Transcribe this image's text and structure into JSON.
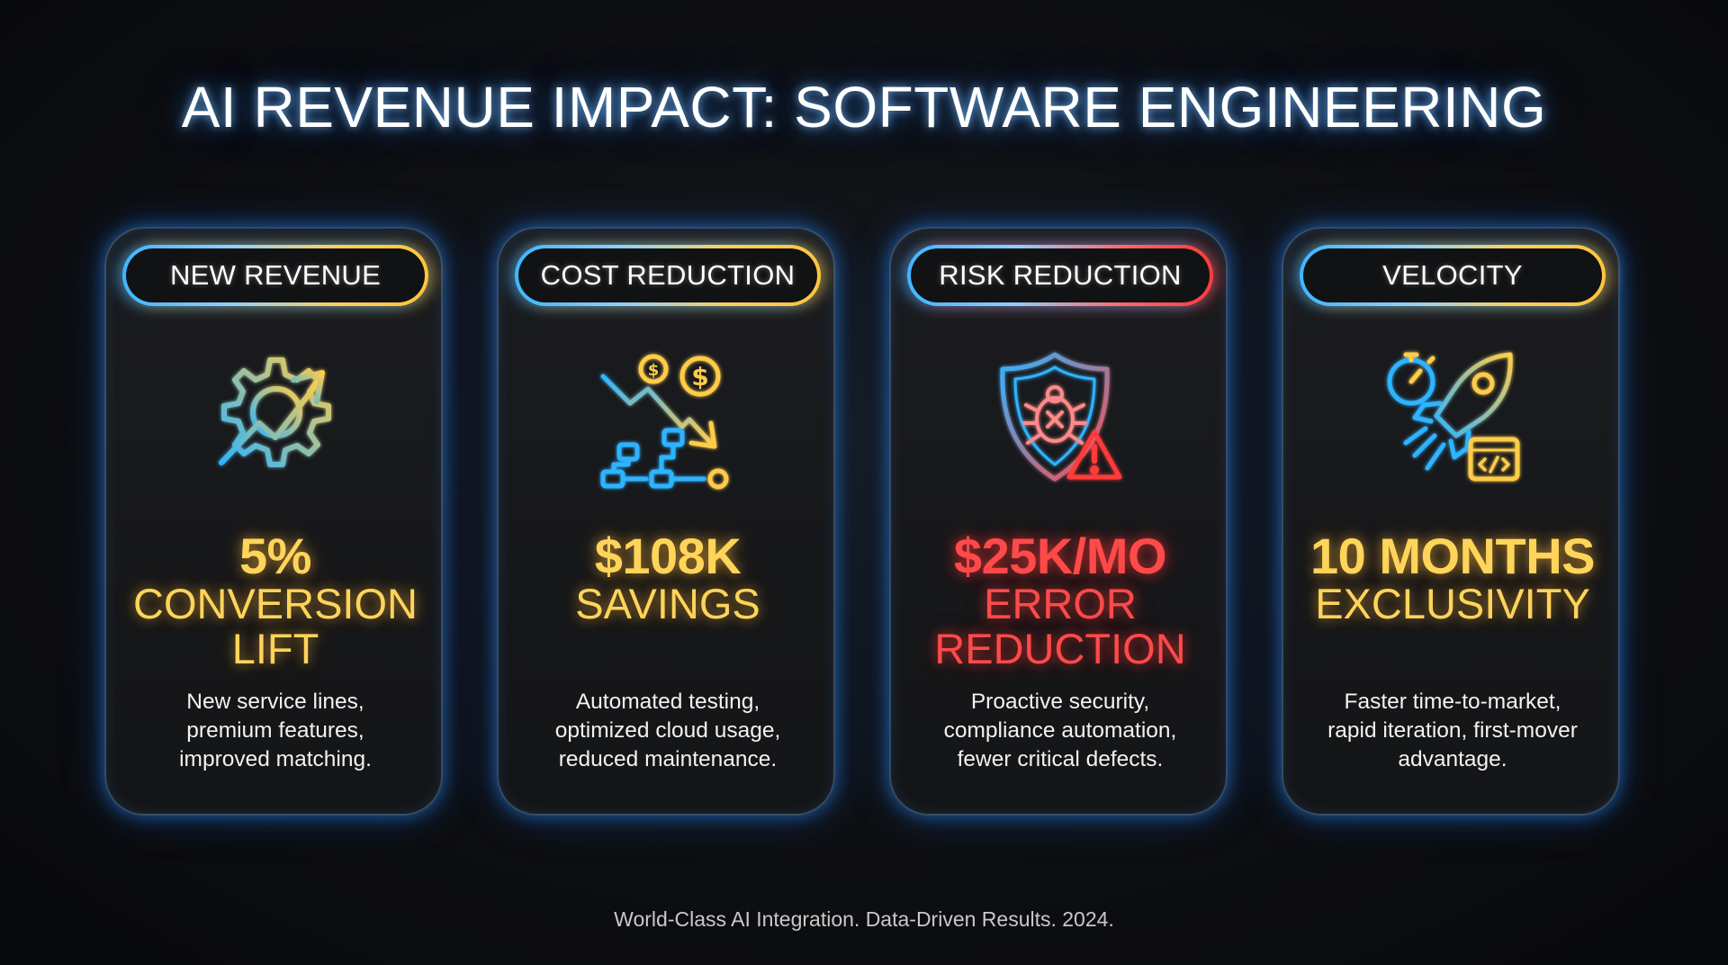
{
  "title": "AI REVENUE IMPACT: SOFTWARE ENGINEERING",
  "cards": [
    {
      "label": "NEW REVENUE",
      "icon": "gear-growth-arrow-icon",
      "metric_value": "5%",
      "metric_label_1": "CONVERSION",
      "metric_label_2": "LIFT",
      "desc_1": "New service lines,",
      "desc_2": "premium features,",
      "desc_3": "improved matching.",
      "accent": "#ffd45a"
    },
    {
      "label": "COST REDUCTION",
      "icon": "cost-down-workflow-icon",
      "metric_value": "$108K",
      "metric_label_1": "SAVINGS",
      "metric_label_2": "",
      "desc_1": "Automated testing,",
      "desc_2": "optimized cloud usage,",
      "desc_3": "reduced maintenance.",
      "accent": "#ffd45a"
    },
    {
      "label": "RISK REDUCTION",
      "icon": "shield-bug-warning-icon",
      "metric_value": "$25K/MO",
      "metric_label_1": "ERROR",
      "metric_label_2": "REDUCTION",
      "desc_1": "Proactive security,",
      "desc_2": "compliance automation,",
      "desc_3": "fewer critical defects.",
      "accent": "#ff4a4a"
    },
    {
      "label": "VELOCITY",
      "icon": "rocket-stopwatch-code-icon",
      "metric_value": "10 MONTHS",
      "metric_label_1": "EXCLUSIVITY",
      "metric_label_2": "",
      "desc_1": "Faster time-to-market,",
      "desc_2": "rapid iteration, first-mover",
      "desc_3": "advantage.",
      "accent": "#ffd45a"
    }
  ],
  "footer": "World-Class AI Integration. Data-Driven Results. 2024."
}
